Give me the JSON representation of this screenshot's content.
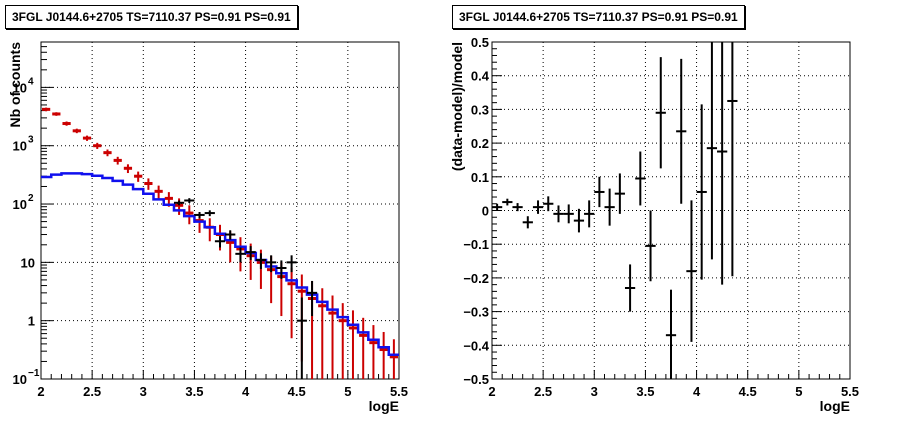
{
  "chart_data": [
    {
      "type": "scatter",
      "title": "3FGL J0144.6+2705 TS=7110.37 PS=0.91 PS=0.91",
      "xlabel": "logE",
      "ylabel": "Nb of counts",
      "xlim": [
        2,
        5.5
      ],
      "ylim": [
        0.1,
        60000
      ],
      "yscale": "log",
      "grid": true,
      "xticks": [
        "2",
        "2.5",
        "3",
        "3.5",
        "4",
        "4.5",
        "5",
        "5.5"
      ],
      "yticks": [
        {
          "value": 0.1,
          "label": "10",
          "exp": "−1"
        },
        {
          "value": 1,
          "label": "1",
          "exp": ""
        },
        {
          "value": 10,
          "label": "10",
          "exp": ""
        },
        {
          "value": 100,
          "label": "10",
          "exp": "2"
        },
        {
          "value": 1000,
          "label": "10",
          "exp": "3"
        },
        {
          "value": 10000,
          "label": "10",
          "exp": "4"
        }
      ],
      "bin_edges": [
        2.0,
        2.1,
        2.2,
        2.3,
        2.4,
        2.5,
        2.6,
        2.7,
        2.8,
        2.9,
        3.0,
        3.1,
        3.2,
        3.3,
        3.4,
        3.5,
        3.6,
        3.7,
        3.8,
        3.9,
        4.0,
        4.1,
        4.2,
        4.3,
        4.4,
        4.5,
        4.6,
        4.7,
        4.8,
        4.9,
        5.0,
        5.1,
        5.2,
        5.3,
        5.4,
        5.5
      ],
      "series": [
        {
          "kind": "model_red",
          "color": "#cc0000",
          "x": [
            2.05,
            2.15,
            2.25,
            2.35,
            2.45,
            2.55,
            2.65,
            2.75,
            2.85,
            2.95,
            3.05,
            3.15,
            3.25,
            3.35,
            3.45,
            3.55,
            3.65,
            3.75,
            3.85,
            3.95,
            4.05,
            4.15,
            4.25,
            4.35,
            4.45,
            4.55,
            4.65,
            4.75,
            4.85,
            4.95,
            5.05,
            5.15,
            5.25,
            5.35,
            5.45
          ],
          "y": [
            4200,
            3500,
            2400,
            1800,
            1350,
            1000,
            760,
            560,
            410,
            300,
            225,
            165,
            125,
            95,
            70,
            52,
            40,
            30,
            22,
            17,
            13,
            10,
            7.5,
            5.7,
            4.3,
            3.2,
            2.4,
            1.8,
            1.35,
            1.0,
            0.75,
            0.56,
            0.42,
            0.32,
            0.24
          ],
          "yerr": [
            300,
            250,
            200,
            160,
            140,
            120,
            100,
            85,
            70,
            60,
            50,
            42,
            35,
            30,
            25,
            20,
            17,
            14,
            12,
            10,
            8,
            6.5,
            5.5,
            4.5,
            3.8,
            3.0,
            2.4,
            1.8,
            1.35,
            1.0,
            0.75,
            0.56,
            0.42,
            0.32,
            0.24
          ]
        },
        {
          "kind": "model_blue",
          "color": "#1010ee",
          "y": [
            290,
            320,
            335,
            335,
            325,
            305,
            280,
            250,
            215,
            180,
            150,
            120,
            97,
            78,
            62,
            50,
            40,
            31,
            24,
            18.5,
            14.5,
            11,
            8.5,
            6.5,
            4.9,
            3.7,
            2.8,
            2.1,
            1.55,
            1.15,
            0.85,
            0.63,
            0.47,
            0.35,
            0.26
          ]
        },
        {
          "kind": "data",
          "color": "#000000",
          "x": [
            3.35,
            3.45,
            3.55,
            3.65,
            3.75,
            3.85,
            3.95,
            4.05,
            4.15,
            4.25,
            4.35,
            4.45,
            4.55,
            4.65
          ],
          "y": [
            105,
            115,
            65,
            70,
            23,
            30,
            14,
            15,
            11,
            10,
            8,
            10,
            1,
            3
          ],
          "yerr": [
            10,
            11,
            8,
            8,
            5,
            5.5,
            4,
            4,
            3.3,
            3.2,
            2.8,
            3.2,
            1.5,
            1.8
          ]
        }
      ]
    },
    {
      "type": "scatter",
      "title": "3FGL J0144.6+2705 TS=7110.37 PS=0.91 PS=0.91",
      "xlabel": "logE",
      "ylabel": "(data-model)/model",
      "xlim": [
        2,
        5.5
      ],
      "ylim": [
        -0.5,
        0.5
      ],
      "grid": true,
      "xticks": [
        "2",
        "2.5",
        "3",
        "3.5",
        "4",
        "4.5",
        "5",
        "5.5"
      ],
      "yticks": [
        "−0.5",
        "−0.4",
        "−0.3",
        "−0.2",
        "−0.1",
        "0",
        "0.1",
        "0.2",
        "0.3",
        "0.4",
        "0.5"
      ],
      "series": [
        {
          "kind": "residuals",
          "color": "#000000",
          "x": [
            2.05,
            2.15,
            2.25,
            2.35,
            2.45,
            2.55,
            2.65,
            2.75,
            2.85,
            2.95,
            3.05,
            3.15,
            3.25,
            3.35,
            3.45,
            3.55,
            3.65,
            3.75,
            3.85,
            3.95,
            4.05,
            4.15,
            4.25,
            4.35
          ],
          "y": [
            0.01,
            0.025,
            0.01,
            -0.035,
            0.01,
            0.02,
            -0.01,
            -0.01,
            -0.03,
            -0.01,
            0.055,
            0.01,
            0.05,
            -0.23,
            0.095,
            -0.105,
            0.29,
            -0.37,
            0.235,
            -0.18,
            0.055,
            0.185,
            0.175,
            0.325
          ],
          "yerr": [
            0.01,
            0.01,
            0.012,
            0.018,
            0.02,
            0.022,
            0.025,
            0.028,
            0.035,
            0.04,
            0.045,
            0.055,
            0.06,
            0.07,
            0.08,
            0.105,
            0.165,
            0.135,
            0.215,
            0.21,
            0.26,
            0.33,
            0.395,
            0.52
          ]
        }
      ]
    }
  ]
}
